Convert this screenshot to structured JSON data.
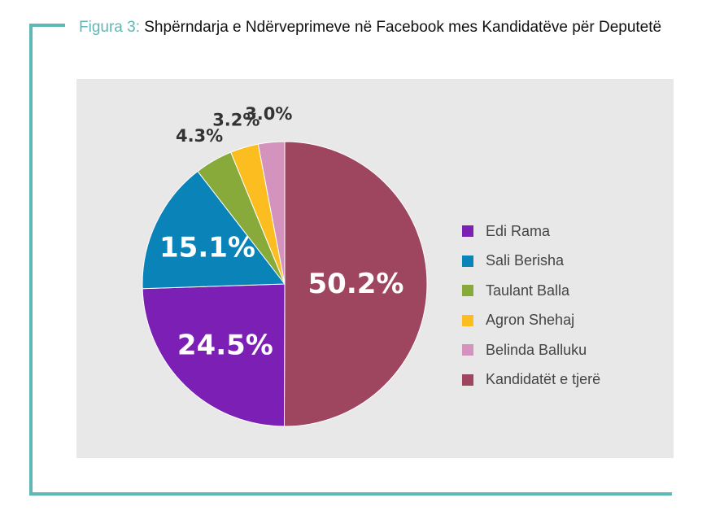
{
  "title": {
    "figure_label": "Figura 3:",
    "text": " Shpërndarja e Ndërveprimeve në Facebook mes Kandidatëve për Deputetë"
  },
  "chart_data": {
    "type": "pie",
    "title": "Shpërndarja e Ndërveprimeve në Facebook mes Kandidatëve për Deputetë",
    "legend_position": "right",
    "slices": [
      {
        "name": "Kandidatët e tjerë",
        "value": 50.2,
        "label": "50.2%",
        "color": "#9e4660",
        "label_inside": true
      },
      {
        "name": "Edi Rama",
        "value": 24.5,
        "label": "24.5%",
        "color": "#7b1fb5",
        "label_inside": true
      },
      {
        "name": "Sali Berisha",
        "value": 15.1,
        "label": "15.1%",
        "color": "#0a84b8",
        "label_inside": true
      },
      {
        "name": "Taulant Balla",
        "value": 4.3,
        "label": "4.3%",
        "color": "#88aa3a",
        "label_inside": false
      },
      {
        "name": "Agron Shehaj",
        "value": 3.2,
        "label": "3.2%",
        "color": "#fbbd20",
        "label_inside": false
      },
      {
        "name": "Belinda Balluku",
        "value": 3.0,
        "label": "3.0%",
        "color": "#d493bd",
        "label_inside": false
      }
    ],
    "legend": [
      {
        "name": "Edi Rama",
        "color": "#7b1fb5"
      },
      {
        "name": "Sali Berisha",
        "color": "#0a84b8"
      },
      {
        "name": "Taulant Balla",
        "color": "#88aa3a"
      },
      {
        "name": "Agron Shehaj",
        "color": "#fbbd20"
      },
      {
        "name": "Belinda Balluku",
        "color": "#d493bd"
      },
      {
        "name": "Kandidatët e tjerë",
        "color": "#9e4660"
      }
    ]
  }
}
